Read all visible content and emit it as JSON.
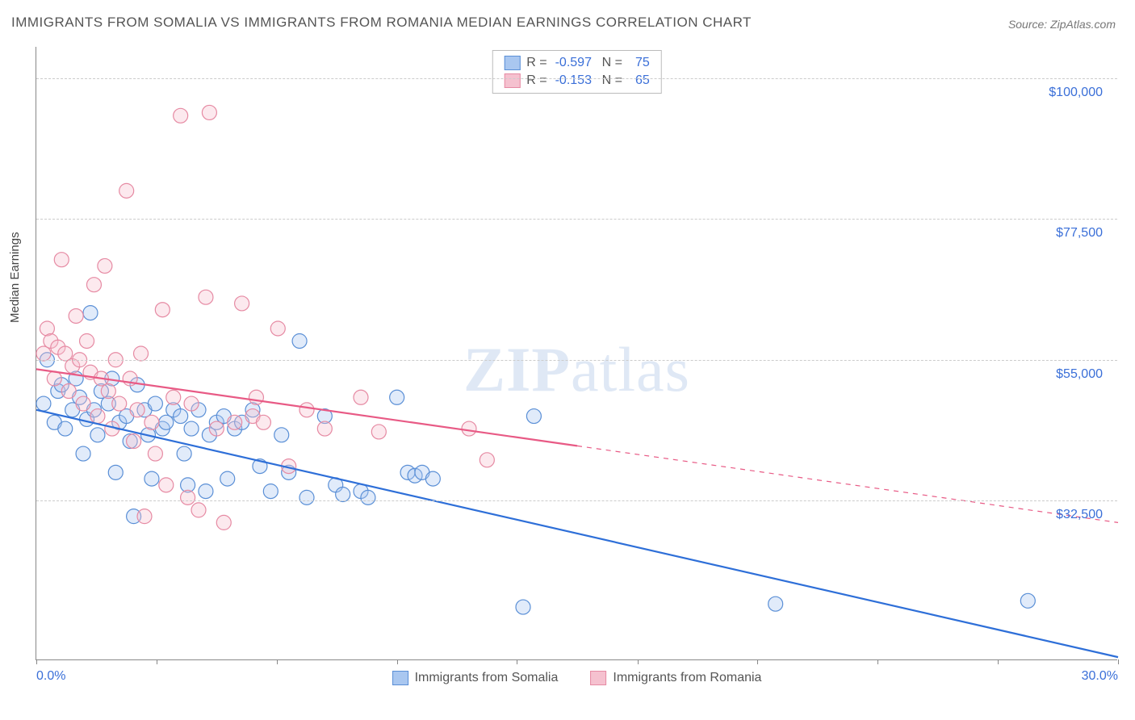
{
  "title": "IMMIGRANTS FROM SOMALIA VS IMMIGRANTS FROM ROMANIA MEDIAN EARNINGS CORRELATION CHART",
  "source_label": "Source: ZipAtlas.com",
  "watermark": {
    "zip": "ZIP",
    "atlas": "atlas"
  },
  "yaxis_title": "Median Earnings",
  "chart": {
    "type": "scatter-with-regression",
    "background_color": "#ffffff",
    "grid_color": "#cccccc",
    "axis_color": "#888888",
    "label_color": "#3a6fd8",
    "text_color": "#555555",
    "xlim": [
      0,
      30
    ],
    "ylim": [
      7000,
      105000
    ],
    "x_unit": "%",
    "y_unit": "$",
    "xtick_positions": [
      0,
      3.33,
      6.67,
      10,
      13.33,
      16.67,
      20,
      23.33,
      26.67,
      30
    ],
    "xtick_labels_shown": {
      "0": "0.0%",
      "30": "30.0%"
    },
    "ytick_values": [
      32500,
      55000,
      77500,
      100000
    ],
    "ytick_labels": [
      "$32,500",
      "$55,000",
      "$77,500",
      "$100,000"
    ],
    "marker_radius": 9,
    "marker_stroke_width": 1.2,
    "marker_fill_opacity": 0.35,
    "line_width": 2.2
  },
  "series": [
    {
      "name": "Immigrants from Somalia",
      "color_fill": "#a9c7f0",
      "color_stroke": "#5a8fd6",
      "line_color": "#2e6fd8",
      "R": "-0.597",
      "N": "75",
      "regression": {
        "x1": 0,
        "y1": 47000,
        "x2": 30,
        "y2": 7500,
        "solid_until_x": 30
      },
      "points": [
        [
          0.2,
          48000
        ],
        [
          0.3,
          55000
        ],
        [
          0.5,
          45000
        ],
        [
          0.6,
          50000
        ],
        [
          0.7,
          51000
        ],
        [
          0.8,
          44000
        ],
        [
          1.0,
          47000
        ],
        [
          1.1,
          52000
        ],
        [
          1.2,
          49000
        ],
        [
          1.3,
          40000
        ],
        [
          1.4,
          45500
        ],
        [
          1.5,
          62500
        ],
        [
          1.6,
          47000
        ],
        [
          1.7,
          43000
        ],
        [
          1.8,
          50000
        ],
        [
          2.0,
          48000
        ],
        [
          2.1,
          52000
        ],
        [
          2.2,
          37000
        ],
        [
          2.3,
          45000
        ],
        [
          2.5,
          46000
        ],
        [
          2.6,
          42000
        ],
        [
          2.7,
          30000
        ],
        [
          2.8,
          51000
        ],
        [
          3.0,
          47000
        ],
        [
          3.1,
          43000
        ],
        [
          3.2,
          36000
        ],
        [
          3.3,
          48000
        ],
        [
          3.5,
          44000
        ],
        [
          3.6,
          45000
        ],
        [
          3.8,
          47000
        ],
        [
          4.0,
          46000
        ],
        [
          4.1,
          40000
        ],
        [
          4.2,
          35000
        ],
        [
          4.3,
          44000
        ],
        [
          4.5,
          47000
        ],
        [
          4.7,
          34000
        ],
        [
          4.8,
          43000
        ],
        [
          5.0,
          45000
        ],
        [
          5.2,
          46000
        ],
        [
          5.3,
          36000
        ],
        [
          5.5,
          44000
        ],
        [
          5.7,
          45000
        ],
        [
          6.0,
          47000
        ],
        [
          6.2,
          38000
        ],
        [
          6.5,
          34000
        ],
        [
          6.8,
          43000
        ],
        [
          7.0,
          37000
        ],
        [
          7.3,
          58000
        ],
        [
          7.5,
          33000
        ],
        [
          8.0,
          46000
        ],
        [
          8.3,
          35000
        ],
        [
          8.5,
          33500
        ],
        [
          9.0,
          34000
        ],
        [
          9.2,
          33000
        ],
        [
          10.0,
          49000
        ],
        [
          10.3,
          37000
        ],
        [
          10.5,
          36500
        ],
        [
          10.7,
          37000
        ],
        [
          11.0,
          36000
        ],
        [
          13.5,
          15500
        ],
        [
          13.8,
          46000
        ],
        [
          20.5,
          16000
        ],
        [
          27.5,
          16500
        ]
      ]
    },
    {
      "name": "Immigrants from Romania",
      "color_fill": "#f5c1cf",
      "color_stroke": "#e68aa3",
      "line_color": "#e85a85",
      "R": "-0.153",
      "N": "65",
      "regression": {
        "x1": 0,
        "y1": 53500,
        "x2": 30,
        "y2": 29000,
        "solid_until_x": 15
      },
      "points": [
        [
          0.2,
          56000
        ],
        [
          0.3,
          60000
        ],
        [
          0.4,
          58000
        ],
        [
          0.5,
          52000
        ],
        [
          0.6,
          57000
        ],
        [
          0.7,
          71000
        ],
        [
          0.8,
          56000
        ],
        [
          0.9,
          50000
        ],
        [
          1.0,
          54000
        ],
        [
          1.1,
          62000
        ],
        [
          1.2,
          55000
        ],
        [
          1.3,
          48000
        ],
        [
          1.4,
          58000
        ],
        [
          1.5,
          53000
        ],
        [
          1.6,
          67000
        ],
        [
          1.7,
          46000
        ],
        [
          1.8,
          52000
        ],
        [
          1.9,
          70000
        ],
        [
          2.0,
          50000
        ],
        [
          2.1,
          44000
        ],
        [
          2.2,
          55000
        ],
        [
          2.3,
          48000
        ],
        [
          2.5,
          82000
        ],
        [
          2.6,
          52000
        ],
        [
          2.7,
          42000
        ],
        [
          2.8,
          47000
        ],
        [
          2.9,
          56000
        ],
        [
          3.0,
          30000
        ],
        [
          3.2,
          45000
        ],
        [
          3.3,
          40000
        ],
        [
          3.5,
          63000
        ],
        [
          3.6,
          35000
        ],
        [
          3.8,
          49000
        ],
        [
          4.0,
          94000
        ],
        [
          4.2,
          33000
        ],
        [
          4.3,
          48000
        ],
        [
          4.5,
          31000
        ],
        [
          4.7,
          65000
        ],
        [
          4.8,
          94500
        ],
        [
          5.0,
          44000
        ],
        [
          5.2,
          29000
        ],
        [
          5.5,
          45000
        ],
        [
          5.7,
          64000
        ],
        [
          6.0,
          46000
        ],
        [
          6.1,
          49000
        ],
        [
          6.3,
          45000
        ],
        [
          6.7,
          60000
        ],
        [
          7.0,
          38000
        ],
        [
          7.5,
          47000
        ],
        [
          8.0,
          44000
        ],
        [
          9.0,
          49000
        ],
        [
          9.5,
          43500
        ],
        [
          12.0,
          44000
        ],
        [
          12.5,
          39000
        ]
      ]
    }
  ],
  "bottom_legend": [
    {
      "label": "Immigrants from Somalia",
      "fill": "#a9c7f0",
      "stroke": "#5a8fd6"
    },
    {
      "label": "Immigrants from Romania",
      "fill": "#f5c1cf",
      "stroke": "#e68aa3"
    }
  ]
}
